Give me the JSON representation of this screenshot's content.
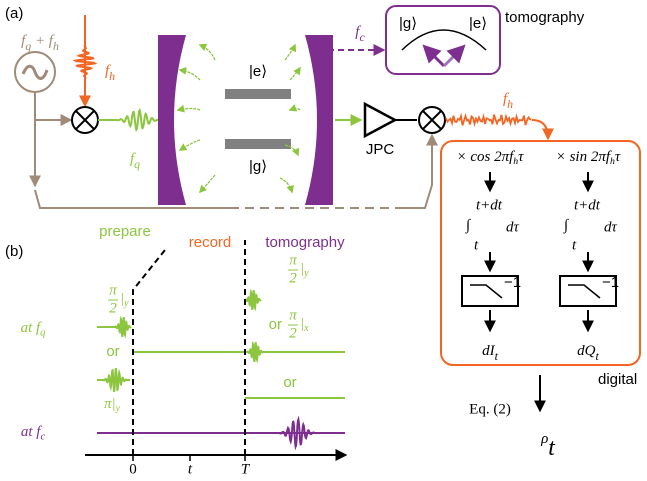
{
  "panel_a": {
    "label": "(a)",
    "source": [
      [
        "f",
        "q"
      ],
      [
        " + f",
        "h"
      ]
    ],
    "drive": [
      [
        "f",
        "h"
      ]
    ],
    "qubit_drive": [
      [
        "f",
        "q"
      ]
    ],
    "excited": "|e⟩",
    "ground": "|g⟩",
    "cavity_drive": [
      [
        "f",
        "c"
      ]
    ],
    "bloch_ground": "|g⟩",
    "bloch_excited": "|e⟩",
    "tomography": "tomography",
    "amplifier": "JPC",
    "demod": [
      [
        "f",
        "h"
      ]
    ],
    "columns": [
      {
        "multiply": [
          [
            "× cos 2πf",
            "h"
          ],
          [
            "τ"
          ]
        ],
        "integral": {
          "sign": "∫",
          "upper": "t+dt",
          "lower": "t",
          "body": "dτ"
        },
        "filter": "−1",
        "output": [
          [
            "dI",
            "t"
          ]
        ]
      },
      {
        "multiply": [
          [
            "× sin 2πf",
            "h"
          ],
          [
            "τ"
          ]
        ],
        "integral": {
          "sign": "∫",
          "upper": "t+dt",
          "lower": "t",
          "body": "dτ"
        },
        "filter": "−1",
        "output": [
          [
            "dQ",
            "t"
          ]
        ]
      }
    ],
    "digital": "digital",
    "equation": "Eq. (2)",
    "result": [
      [
        "ρ",
        "t"
      ]
    ]
  },
  "panel_b": {
    "label": "(b)",
    "prepare": "prepare",
    "record": "record",
    "tomography": "tomography",
    "row_fq": [
      [
        "at f",
        "q"
      ]
    ],
    "row_fc": [
      [
        "at f",
        "c"
      ]
    ],
    "pulse_pi2_y": {
      "num": "π",
      "den": "2",
      "rest": "|",
      "sub": "y"
    },
    "or_1": "or",
    "pulse_pi_y": [
      [
        "π|",
        "y"
      ]
    ],
    "tomo_y": {
      "num": "π",
      "den": "2",
      "rest": "|",
      "sub": "y"
    },
    "tomo_x": {
      "prefix": "or",
      "num": "π",
      "den": "2",
      "rest": "|",
      "sub": "x"
    },
    "or_2": "or",
    "ticks": [
      "0",
      "t",
      "T"
    ]
  }
}
